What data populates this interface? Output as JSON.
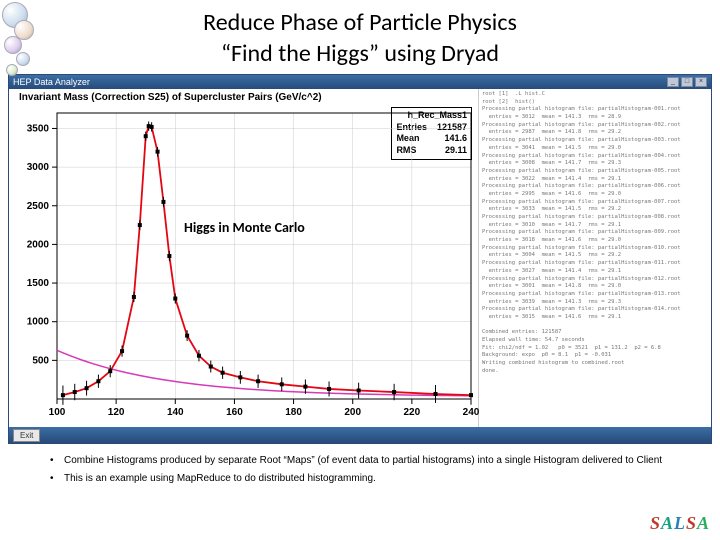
{
  "title": "Reduce Phase of Particle Physics",
  "subtitle": "“Find the Higgs” using Dryad",
  "window_title": "HEP Data Analyzer",
  "chart": {
    "title": "Invariant Mass (Correction S25) of Supercluster Pairs (GeV/c^2)",
    "stats": {
      "name": "h_Rec_Mass1",
      "entries": "121587",
      "mean": "141.6",
      "rms": "29.11"
    },
    "annotation": "Higgs in Monte Carlo",
    "xlim": [
      100,
      240
    ],
    "ylim": [
      0,
      3700
    ],
    "xticks": [
      100,
      120,
      140,
      160,
      180,
      200,
      220,
      240
    ],
    "yticks": [
      500,
      1000,
      1500,
      2000,
      2500,
      3000,
      3500
    ],
    "data_points": [
      {
        "x": 102,
        "y": 50
      },
      {
        "x": 106,
        "y": 90
      },
      {
        "x": 110,
        "y": 140
      },
      {
        "x": 114,
        "y": 230
      },
      {
        "x": 118,
        "y": 360
      },
      {
        "x": 122,
        "y": 620
      },
      {
        "x": 126,
        "y": 1320
      },
      {
        "x": 128,
        "y": 2250
      },
      {
        "x": 130,
        "y": 3400
      },
      {
        "x": 131,
        "y": 3530
      },
      {
        "x": 132,
        "y": 3520
      },
      {
        "x": 134,
        "y": 3200
      },
      {
        "x": 136,
        "y": 2550
      },
      {
        "x": 138,
        "y": 1850
      },
      {
        "x": 140,
        "y": 1300
      },
      {
        "x": 144,
        "y": 820
      },
      {
        "x": 148,
        "y": 560
      },
      {
        "x": 152,
        "y": 420
      },
      {
        "x": 156,
        "y": 340
      },
      {
        "x": 162,
        "y": 280
      },
      {
        "x": 168,
        "y": 230
      },
      {
        "x": 176,
        "y": 190
      },
      {
        "x": 184,
        "y": 160
      },
      {
        "x": 192,
        "y": 130
      },
      {
        "x": 202,
        "y": 110
      },
      {
        "x": 214,
        "y": 90
      },
      {
        "x": 228,
        "y": 65
      },
      {
        "x": 240,
        "y": 50
      }
    ],
    "fit_curve_color": "#e30613",
    "bg_curve_color": "#d63ab8",
    "marker_color": "#000000",
    "grid_color": "#cccccc",
    "axis_color": "#000000"
  },
  "text_panel_lines": [
    "root [1]  .L hist.C",
    "root [2]  hist()",
    "Processing partial histogram file: partialHistogram-001.root",
    "  entries = 3012  mean = 141.3  rms = 28.9",
    "Processing partial histogram file: partialHistogram-002.root",
    "  entries = 2987  mean = 141.8  rms = 29.2",
    "Processing partial histogram file: partialHistogram-003.root",
    "  entries = 3041  mean = 141.5  rms = 29.0",
    "Processing partial histogram file: partialHistogram-004.root",
    "  entries = 3008  mean = 141.7  rms = 29.3",
    "Processing partial histogram file: partialHistogram-005.root",
    "  entries = 3022  mean = 141.4  rms = 29.1",
    "Processing partial histogram file: partialHistogram-006.root",
    "  entries = 2995  mean = 141.6  rms = 29.0",
    "Processing partial histogram file: partialHistogram-007.root",
    "  entries = 3033  mean = 141.5  rms = 29.2",
    "Processing partial histogram file: partialHistogram-008.root",
    "  entries = 3010  mean = 141.7  rms = 29.1",
    "Processing partial histogram file: partialHistogram-009.root",
    "  entries = 3018  mean = 141.6  rms = 29.0",
    "Processing partial histogram file: partialHistogram-010.root",
    "  entries = 3004  mean = 141.5  rms = 29.2",
    "Processing partial histogram file: partialHistogram-011.root",
    "  entries = 3027  mean = 141.4  rms = 29.1",
    "Processing partial histogram file: partialHistogram-012.root",
    "  entries = 3001  mean = 141.8  rms = 29.0",
    "Processing partial histogram file: partialHistogram-013.root",
    "  entries = 3039  mean = 141.3  rms = 29.3",
    "Processing partial histogram file: partialHistogram-014.root",
    "  entries = 3015  mean = 141.6  rms = 29.1",
    "",
    "Combined entries: 121587",
    "Elapsed wall time: 54.7 seconds",
    "Fit: chi2/ndf = 1.02   p0 = 3521  p1 = 131.2  p2 = 6.8",
    "Background: expo  p0 = 8.1  p1 = -0.031",
    "Writing combined histogram to combined.root",
    "done."
  ],
  "exit_label": "Exit",
  "bullets": [
    "Combine Histograms produced by separate Root “Maps” (of event data to partial histograms) into a single Histogram delivered to Client",
    "This is an example using MapReduce to do distributed histogramming."
  ],
  "logo": "SALSA"
}
